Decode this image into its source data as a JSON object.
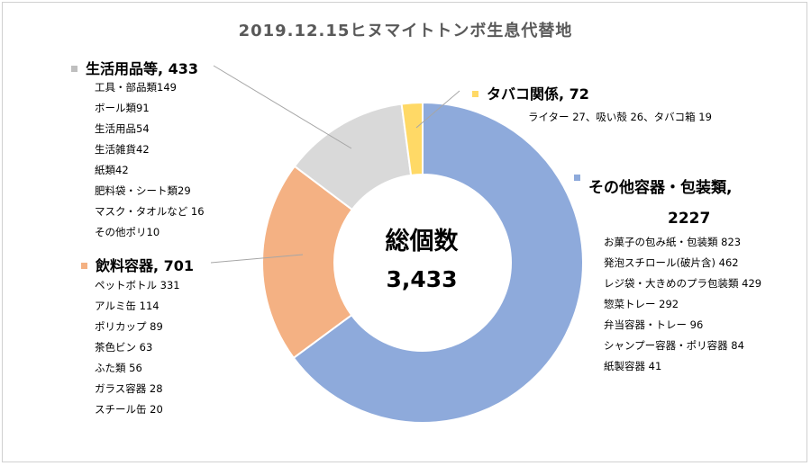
{
  "chart_title": "2019.12.15ヒヌマイトトンボ生息代替地",
  "center": {
    "label": "総個数",
    "total": "3,433"
  },
  "colors": {
    "other_containers": "#8eaadb",
    "beverage": "#f4b183",
    "daily_goods": "#d9d9d9",
    "tobacco": "#ffd966"
  },
  "chart_data": {
    "type": "pie",
    "style": "donut",
    "categories": [
      "その他容器・包装類",
      "飲料容器",
      "生活用品等",
      "タバコ関係"
    ],
    "values": [
      2227,
      701,
      433,
      72
    ],
    "total": 3433
  },
  "groups": {
    "daily_goods": {
      "label": "生活用品等, 433",
      "items": [
        "工具・部品類149",
        "ボール類91",
        "生活用品54",
        "生活雑貨42",
        "紙類42",
        "肥料袋・シート類29",
        "マスク・タオルなど 16",
        "その他ポリ10"
      ]
    },
    "tobacco": {
      "label": "タバコ関係, 72",
      "items_text": "ライター 27、吸い殻 26、タバコ箱 19"
    },
    "other_containers": {
      "label_line1": "その他容器・包装類,",
      "label_line2": "2227",
      "items": [
        "お菓子の包み紙・包装類 823",
        "発泡スチロール(破片含) 462",
        "レジ袋・大きめのプラ包装類 429",
        "惣菜トレー 292",
        "弁当容器・トレー 96",
        "シャンプー容器・ポリ容器 84",
        "紙製容器 41"
      ]
    },
    "beverage": {
      "label": "飲料容器, 701",
      "items": [
        "ペットボトル 331",
        "アルミ缶 114",
        "ポリカップ 89",
        "茶色ビン 63",
        "ふた類 56",
        "ガラス容器 28",
        "スチール缶 20"
      ]
    }
  }
}
